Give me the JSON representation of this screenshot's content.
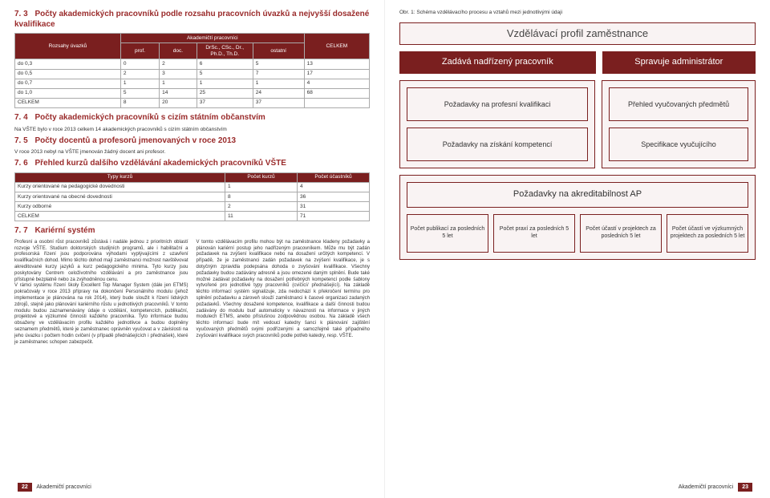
{
  "left": {
    "sec73": {
      "num": "7. 3",
      "title": "Počty akademických pracovníků podle rozsahu pracovních úvazků a nejvyšší dosažené kvalifikace",
      "table": {
        "super_header": "Akademičtí pracovníci",
        "col_rozsah": "Rozsahy úvazků",
        "cols": [
          "prof.",
          "doc.",
          "DrSc., CSc., Dr., Ph.D., Th.D.",
          "ostatní"
        ],
        "col_total": "CELKEM",
        "rows": [
          {
            "label": "do 0,3",
            "v": [
              "0",
              "2",
              "6",
              "5",
              "13"
            ]
          },
          {
            "label": "do 0,5",
            "v": [
              "2",
              "3",
              "5",
              "7",
              "17"
            ]
          },
          {
            "label": "do 0,7",
            "v": [
              "1",
              "1",
              "1",
              "1",
              "4"
            ]
          },
          {
            "label": "do 1,0",
            "v": [
              "5",
              "14",
              "25",
              "24",
              "68"
            ]
          },
          {
            "label": "CELKEM",
            "v": [
              "8",
              "20",
              "37",
              "37",
              ""
            ]
          }
        ]
      }
    },
    "sec74": {
      "num": "7. 4",
      "title": "Počty akademických pracovníků s cizím státním občanstvím",
      "note": "Na VŠTE bylo v roce 2013 celkem 14 akademických pracovníků s cizím státním občanstvím"
    },
    "sec75": {
      "num": "7. 5",
      "title": "Počty docentů a profesorů jmenovaných v roce 2013",
      "note": "V roce 2013 nebyl na VŠTE jmenován žádný docent ani profesor."
    },
    "sec76": {
      "num": "7. 6",
      "title": "Přehled kurzů dalšího vzdělávání akademických pracovníků VŠTE",
      "table": {
        "cols": [
          "Typy kurzů",
          "Počet kurzů",
          "Počet účastníků"
        ],
        "rows": [
          {
            "label": "Kurzy orientované na pedagogické dovednosti",
            "v": [
              "1",
              "4"
            ]
          },
          {
            "label": "Kurzy orientované na obecné dovednosti",
            "v": [
              "8",
              "36"
            ]
          },
          {
            "label": "Kurzy odborné",
            "v": [
              "2",
              "31"
            ]
          },
          {
            "label": "CELKEM",
            "v": [
              "11",
              "71"
            ]
          }
        ]
      }
    },
    "sec77": {
      "num": "7. 7",
      "title": "Kariérní systém",
      "body1": "Profesní a osobní růst pracovníků zůstává i nadále jednou z prioritních oblastí rozvoje VŠTE. Studium doktorských studijních programů, ale i habilitační a profesorská řízení jsou podporována výhodami vyplývajícími z uzavření kvalifikačních dohod. Mimo těchto dohod mají zaměstnanci možnost navštěvovat akreditované kurzy jazyků a kurz pedagogického minima. Tyto kurzy jsou poskytovány Centrem celoživotního vzdělávání a pro zaměstnance jsou přístupné bezplatně nebo za zvýhodněnou cenu.",
      "body2": "V rámci systému řízení školy Excellent Top Manager System (dále jen ETMS) pokračovaly v roce 2013 přípravy na dokončení Personálního modulu (jehož implementace je plánována na rok 2014), který bude sloužit k řízení lidských zdrojů, stejně jako plánování kariérního růstu u jednotlivých pracovníků. V tomto modulu budou zaznamenávány údaje o vzdělání, kompetencích, publikační, projektové a výzkumné činnosti každého pracovníka. Tyto informace budou obsaženy ve vzdělávacím profilu každého jednotlivce a budou doplněny seznamem předmětů, které je zaměstnanec oprávněn vyučovat a v závislosti na jeho úvazku i počtem hodin cvičení (v případě přednášejících i přednášek), které je zaměstnanec schopen zabezpečit.",
      "body3": "V tomto vzdělávacím profilu mohou být na zaměstnance kladeny požadavky a plánován kariérní postup jeho nadřízeným pracovníkem. Může mu být zadán požadavek na zvýšení kvalifikace nebo na dosažení určitých kompetencí. V případě, že je zaměstnanci zadán požadavek na zvýšení kvalifikace, je s dotyčným zpravidla podepsána dohoda o zvyšování kvalifikace. Všechny požadavky budou zadávány adresně a jsou omezené daným splnění. Bude také možné zadávat požadavky na dosažení potřebných kompetencí podle šablony vytvořené pro jednotlivé typy pracovníků (cvičící/ přednášející). Na základě těchto informací systém signalizuje, zda nedochází k překročení termínu pro splnění požadavku a zároveň slouží zaměstnanci k časové organizaci zadaných požadavků. Všechny dosažené kompetence, kvalifikace a další činnosti budou zadávány do modulu buď automaticky v návaznosti na informace v jiných modulech ETMS, anebo příslušnou zodpovědnou osobou. Na základě všech těchto informací bude mít vedoucí katedry šanci k plánování zajištění vyučovaných předmětů svými podřízenými a samozřejmě také případného zvyšování kvalifikace svých pracovníků podle potřeb katedry, resp. VŠTE."
    },
    "footer": {
      "page": "22",
      "label": "Akademičtí pracovníci"
    }
  },
  "right": {
    "caption": "Obr. 1: Schéma vzdělávacího procesu a vztahů mezi jednotlivými údaji",
    "diagram": {
      "title": "Vzdělávací profil zaměstnance",
      "row2a": "Zadává nadřízený pracovník",
      "row2b": "Spravuje administrátor",
      "nest_left_1": "Požadavky na profesní kvalifikaci",
      "nest_left_2": "Požadavky na získání kompetencí",
      "nest_right_1": "Přehled vyučovaných předmětů",
      "nest_right_2": "Specifikace vyučujícího",
      "wide": "Požadavky na akreditabilnost AP",
      "cells": [
        "Počet publikací za posledních 5 let",
        "Počet praxí za posledních 5 let",
        "Počet účastí v projektech za posledních 5 let",
        "Počet účastí ve výzkumných projektech za posledních 5 let"
      ]
    },
    "footer": {
      "label": "Akademičtí pracovníci",
      "page": "23"
    }
  }
}
